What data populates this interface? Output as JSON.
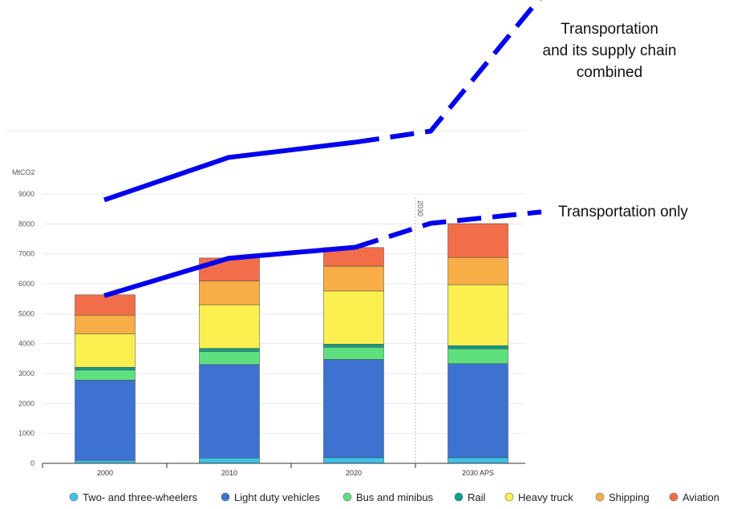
{
  "chart_data": {
    "type": "bar",
    "stacked": true,
    "unit_label": "MtCO2",
    "categories": [
      "2000",
      "2010",
      "2020",
      "2030 APS"
    ],
    "ylim": [
      0,
      9000
    ],
    "yticks": [
      0,
      1000,
      2000,
      3000,
      4000,
      5000,
      6000,
      7000,
      8000,
      9000
    ],
    "grid": true,
    "legend_position": "bottom",
    "series": [
      {
        "name": "Two- and three-wheelers",
        "color": "#3fc1e9",
        "values": [
          100,
          180,
          190,
          190
        ]
      },
      {
        "name": "Light duty vehicles",
        "color": "#3d72d0",
        "values": [
          2680,
          3120,
          3280,
          3140
        ]
      },
      {
        "name": "Bus and minibus",
        "color": "#5fe07f",
        "values": [
          340,
          440,
          410,
          500
        ]
      },
      {
        "name": "Rail",
        "color": "#0e9e8e",
        "values": [
          90,
          100,
          100,
          100
        ]
      },
      {
        "name": "Heavy truck",
        "color": "#fbf04f",
        "values": [
          1120,
          1460,
          1780,
          2040
        ]
      },
      {
        "name": "Shipping",
        "color": "#f8ae47",
        "values": [
          620,
          790,
          830,
          910
        ]
      },
      {
        "name": "Aviation",
        "color": "#f26d4a",
        "values": [
          680,
          770,
          620,
          1130
        ]
      }
    ],
    "marker_line": {
      "after_category_index": 2,
      "label": "2030"
    },
    "overlays": [
      {
        "label": "Transportation only",
        "color": "#0000ee",
        "solid_values": [
          5600,
          6850,
          7220
        ],
        "dashed_values": [
          7220,
          8020,
          8400
        ]
      },
      {
        "label_lines": [
          "Transportation",
          "and its supply chain",
          "combined"
        ],
        "color": "#0000ee",
        "solid_values": [
          8800,
          10220,
          10730
        ],
        "dashed_values": [
          10730,
          11100,
          15600
        ]
      }
    ]
  }
}
